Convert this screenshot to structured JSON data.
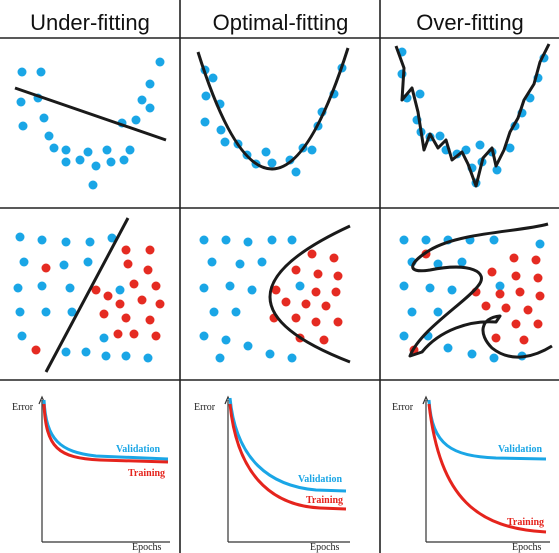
{
  "columns": [
    {
      "key": "under",
      "title": "Under-fitting"
    },
    {
      "key": "optimal",
      "title": "Optimal-fitting"
    },
    {
      "key": "over",
      "title": "Over-fitting"
    }
  ],
  "colors": {
    "blue_point": "#1aa6e6",
    "red_point": "#e52b22",
    "fit_line": "#1a1a1a",
    "validation": "#1aa6e6",
    "training": "#e5241d",
    "grid": "#222222"
  },
  "error_plots": {
    "y_label": "Error",
    "x_label": "Epochs",
    "validation_label": "Validation",
    "training_label": "Training"
  }
}
